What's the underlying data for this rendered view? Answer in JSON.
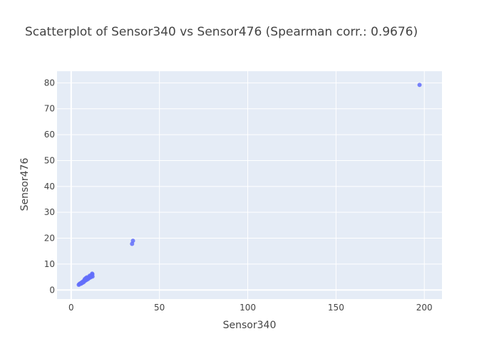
{
  "chart_data": {
    "type": "scatter",
    "title": "Scatterplot of Sensor340 vs Sensor476 (Spearman corr.: 0.9676)",
    "xlabel": "Sensor340",
    "ylabel": "Sensor476",
    "xlim": [
      -8,
      210
    ],
    "ylim": [
      -3.5,
      84.5
    ],
    "x_ticks": [
      0,
      50,
      100,
      150,
      200
    ],
    "y_ticks": [
      0,
      10,
      20,
      30,
      40,
      50,
      60,
      70,
      80
    ],
    "grid": true,
    "legend": "none",
    "colors": {
      "background": "#e5ecf6",
      "grid": "#ffffff",
      "marker": "#636efa",
      "text": "#444444"
    },
    "points": [
      [
        4.3,
        2.0
      ],
      [
        4.6,
        2.2
      ],
      [
        4.9,
        2.4
      ],
      [
        5.2,
        2.5
      ],
      [
        5.5,
        2.6
      ],
      [
        5.8,
        2.8
      ],
      [
        6.1,
        2.9
      ],
      [
        6.4,
        3.1
      ],
      [
        6.7,
        3.2
      ],
      [
        7.0,
        3.4
      ],
      [
        7.3,
        3.5
      ],
      [
        7.6,
        3.7
      ],
      [
        7.9,
        3.8
      ],
      [
        8.2,
        4.0
      ],
      [
        8.5,
        4.1
      ],
      [
        8.8,
        4.3
      ],
      [
        9.1,
        4.4
      ],
      [
        9.4,
        4.5
      ],
      [
        9.7,
        4.7
      ],
      [
        10.0,
        4.8
      ],
      [
        10.3,
        5.0
      ],
      [
        10.6,
        5.1
      ],
      [
        10.9,
        5.3
      ],
      [
        11.2,
        5.5
      ],
      [
        11.5,
        5.7
      ],
      [
        11.8,
        5.9
      ],
      [
        12.0,
        6.1
      ],
      [
        11.6,
        5.4
      ],
      [
        11.0,
        4.9
      ],
      [
        10.2,
        4.6
      ],
      [
        9.5,
        4.2
      ],
      [
        8.7,
        3.9
      ],
      [
        8.0,
        3.6
      ],
      [
        7.2,
        3.1
      ],
      [
        6.5,
        2.8
      ],
      [
        5.6,
        2.4
      ],
      [
        9.0,
        4.9
      ],
      [
        10.5,
        5.5
      ],
      [
        12.1,
        5.2
      ],
      [
        11.9,
        6.3
      ],
      [
        8.4,
        4.6
      ],
      [
        7.7,
        4.2
      ],
      [
        34.5,
        17.8
      ],
      [
        35.0,
        19.0
      ],
      [
        197.3,
        79.2
      ]
    ]
  }
}
